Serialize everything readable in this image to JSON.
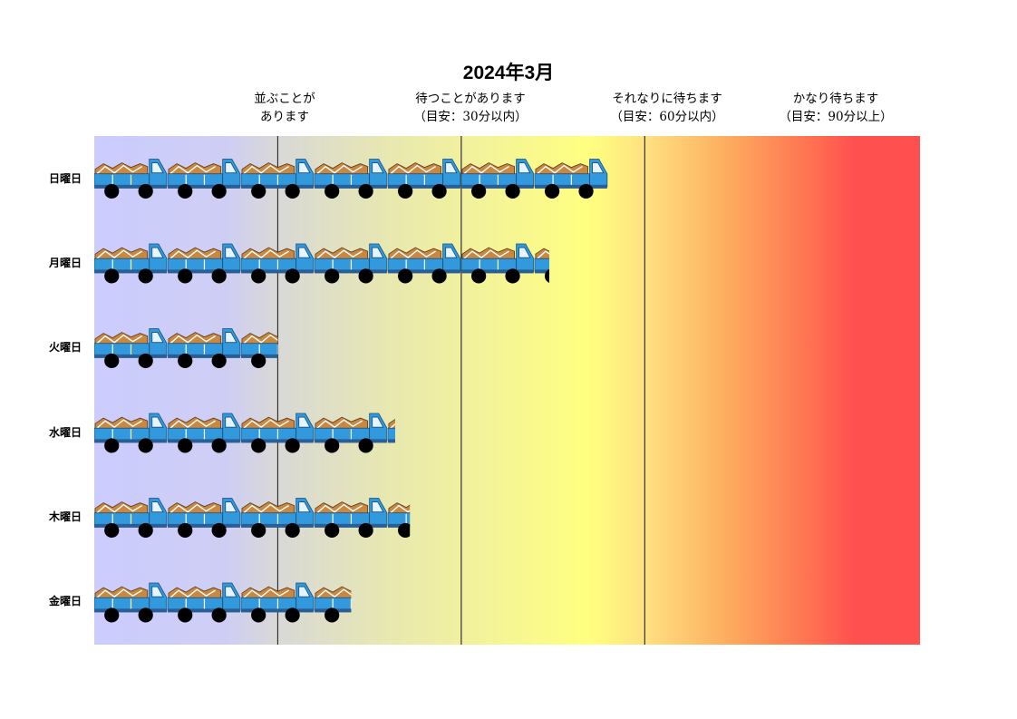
{
  "chart_data": {
    "type": "bar",
    "title": "2024年3月",
    "categories": [
      "日曜日",
      "月曜日",
      "火曜日",
      "水曜日",
      "木曜日",
      "金曜日"
    ],
    "values": [
      7.0,
      6.2,
      2.5,
      4.1,
      4.3,
      3.5
    ],
    "unit_marker": "truck-icon",
    "bands": [
      {
        "label_lines": [
          "並ぶことが",
          "あります"
        ],
        "from": 0,
        "to": 2.5,
        "color": "#ccccff"
      },
      {
        "label_lines": [
          "待つことがあります",
          "（目安：30分以内）"
        ],
        "from": 2.5,
        "to": 5,
        "color": "#f0f0a0"
      },
      {
        "label_lines": [
          "それなりに待ちます",
          "（目安：60分以内）"
        ],
        "from": 5,
        "to": 7.5,
        "color": "#ffff80"
      },
      {
        "label_lines": [
          "かなり待ちます",
          "（目安：90分以上）"
        ],
        "from": 7.5,
        "to": 11.25,
        "color": "#ff5050"
      }
    ],
    "xlim": [
      0,
      11.25
    ],
    "colors": {
      "truck_body": "#3399dd",
      "truck_cargo": "#b07840",
      "wheel": "#000000"
    }
  }
}
